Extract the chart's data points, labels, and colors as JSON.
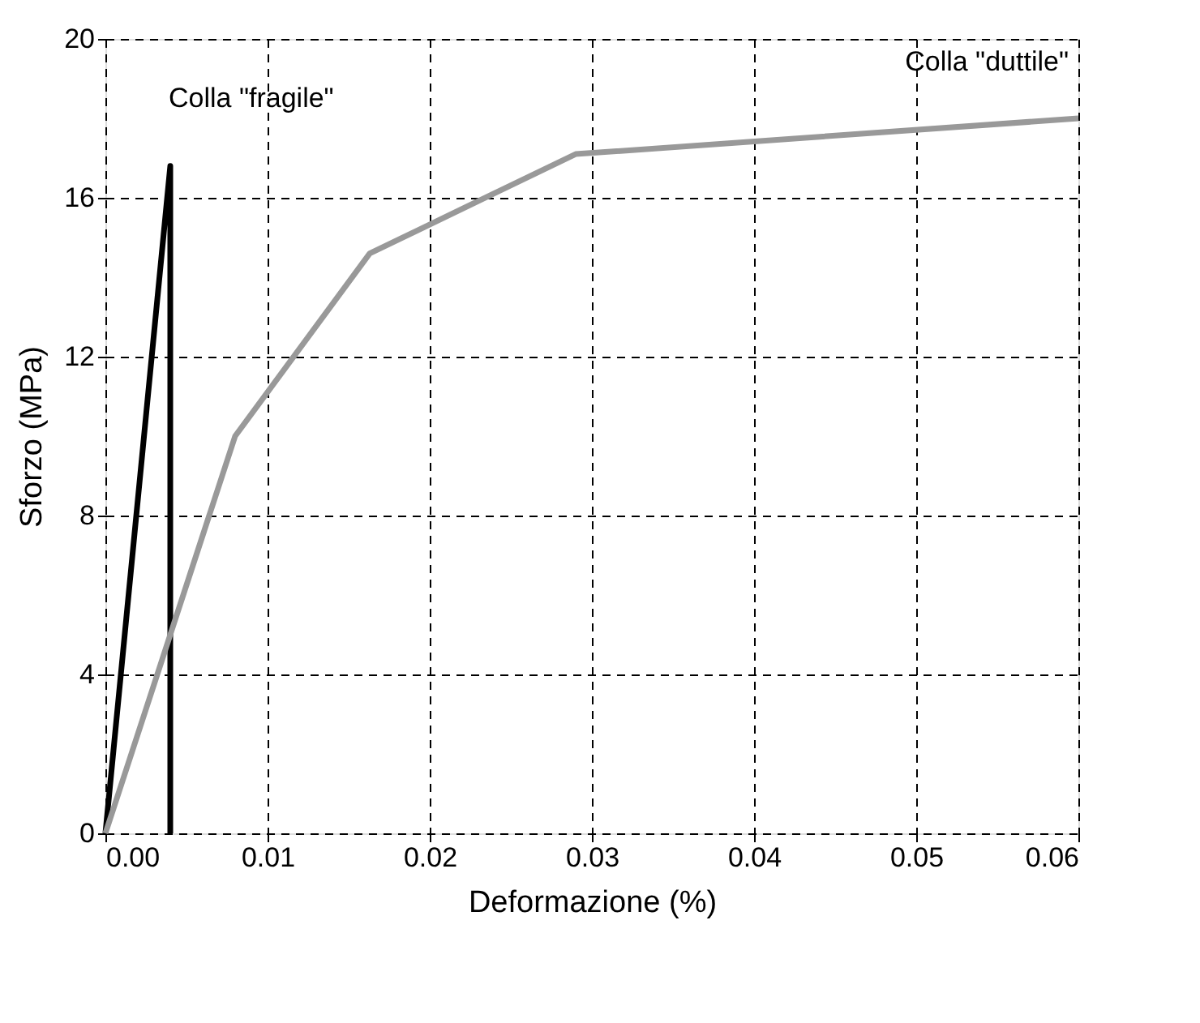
{
  "chart_data": {
    "type": "line",
    "xlabel": "Deformazione (%)",
    "ylabel": "Sforzo (MPa)",
    "xlim": [
      0,
      0.06
    ],
    "xticks": [
      {
        "value": 0,
        "label": "0.00"
      },
      {
        "value": 0.01,
        "label": "0.01"
      },
      {
        "value": 0.02,
        "label": "0.02"
      },
      {
        "value": 0.03,
        "label": "0.03"
      },
      {
        "value": 0.04,
        "label": "0.04"
      },
      {
        "value": 0.05,
        "label": "0.05"
      },
      {
        "value": 0.06,
        "label": "0.06"
      }
    ],
    "ylim": [
      0,
      20
    ],
    "yticks": [
      0,
      4,
      8,
      12,
      16,
      20
    ],
    "grid": true,
    "line_style": "solid",
    "marker": "none",
    "series": [
      {
        "color": "#000000",
        "x": [
          0,
          0.004,
          0.004
        ],
        "values": [
          0,
          16.8,
          0
        ]
      },
      {
        "color": "#999999",
        "x": [
          0,
          0.008,
          0.0163,
          0.029,
          0.06
        ],
        "values": [
          0,
          10,
          14.6,
          17.1,
          18.0
        ]
      }
    ],
    "annotations": [
      "Colla \"fragile\"",
      "Colla \"duttile\""
    ]
  }
}
